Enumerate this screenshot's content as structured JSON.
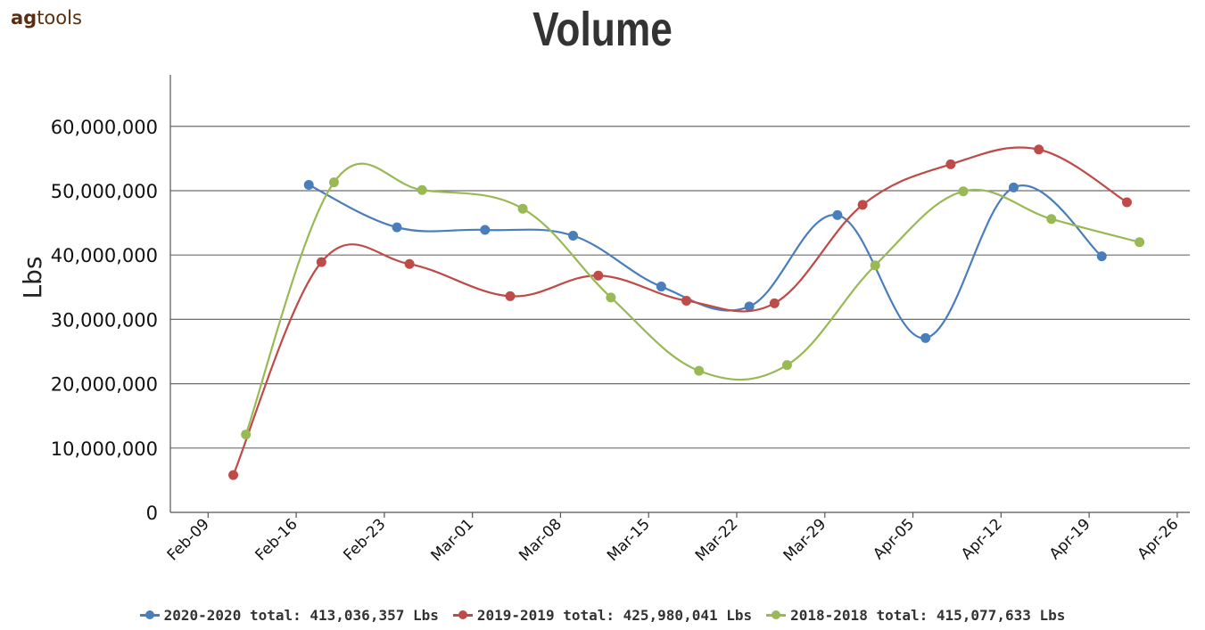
{
  "logo": {
    "text_a": "ag",
    "text_b": "tools"
  },
  "chart_data": {
    "type": "line",
    "title": "Volume",
    "ylabel": "Lbs",
    "xlabel": "",
    "ylim": [
      0,
      68000000
    ],
    "x_axis": {
      "type": "date",
      "range": [
        "2020-02-06",
        "2020-04-27"
      ],
      "tick_dates": [
        "2020-02-09",
        "2020-02-16",
        "2020-02-23",
        "2020-03-01",
        "2020-03-08",
        "2020-03-15",
        "2020-03-22",
        "2020-03-29",
        "2020-04-05",
        "2020-04-12",
        "2020-04-19",
        "2020-04-26"
      ],
      "tick_labels": [
        "Feb-09",
        "Feb-16",
        "Feb-23",
        "Mar-01",
        "Mar-08",
        "Mar-15",
        "Mar-22",
        "Mar-29",
        "Apr-05",
        "Apr-12",
        "Apr-19",
        "Apr-26"
      ]
    },
    "y_ticks": [
      0,
      10000000,
      20000000,
      30000000,
      40000000,
      50000000,
      60000000
    ],
    "y_tick_labels": [
      "0",
      "10,000,000",
      "20,000,000",
      "30,000,000",
      "40,000,000",
      "50,000,000",
      "60,000,000"
    ],
    "grid": true,
    "legend_position": "bottom",
    "series": [
      {
        "name": "2020-2020 total: 413,036,357 Lbs",
        "color": "#4a7ebb",
        "points": [
          {
            "x": "2020-02-17",
            "y": 50900000
          },
          {
            "x": "2020-02-24",
            "y": 44300000
          },
          {
            "x": "2020-03-02",
            "y": 43900000
          },
          {
            "x": "2020-03-09",
            "y": 43000000
          },
          {
            "x": "2020-03-16",
            "y": 35100000
          },
          {
            "x": "2020-03-23",
            "y": 32000000
          },
          {
            "x": "2020-03-30",
            "y": 46200000
          },
          {
            "x": "2020-04-06",
            "y": 27100000
          },
          {
            "x": "2020-04-13",
            "y": 50500000
          },
          {
            "x": "2020-04-20",
            "y": 39800000
          }
        ]
      },
      {
        "name": "2019-2019 total: 425,980,041 Lbs",
        "color": "#be4b48",
        "points": [
          {
            "x": "2020-02-11",
            "y": 5800000
          },
          {
            "x": "2020-02-18",
            "y": 38900000
          },
          {
            "x": "2020-02-25",
            "y": 38600000
          },
          {
            "x": "2020-03-04",
            "y": 33600000
          },
          {
            "x": "2020-03-11",
            "y": 36800000
          },
          {
            "x": "2020-03-18",
            "y": 32900000
          },
          {
            "x": "2020-03-25",
            "y": 32500000
          },
          {
            "x": "2020-04-01",
            "y": 47800000
          },
          {
            "x": "2020-04-08",
            "y": 54100000
          },
          {
            "x": "2020-04-15",
            "y": 56400000
          },
          {
            "x": "2020-04-22",
            "y": 48200000
          }
        ]
      },
      {
        "name": "2018-2018 total: 415,077,633 Lbs",
        "color": "#98b954",
        "points": [
          {
            "x": "2020-02-12",
            "y": 12100000
          },
          {
            "x": "2020-02-19",
            "y": 51300000
          },
          {
            "x": "2020-02-26",
            "y": 50100000
          },
          {
            "x": "2020-03-05",
            "y": 47200000
          },
          {
            "x": "2020-03-12",
            "y": 33400000
          },
          {
            "x": "2020-03-19",
            "y": 22000000
          },
          {
            "x": "2020-03-26",
            "y": 22900000
          },
          {
            "x": "2020-04-02",
            "y": 38400000
          },
          {
            "x": "2020-04-09",
            "y": 49900000
          },
          {
            "x": "2020-04-16",
            "y": 45600000
          },
          {
            "x": "2020-04-23",
            "y": 42000000
          }
        ]
      }
    ]
  }
}
